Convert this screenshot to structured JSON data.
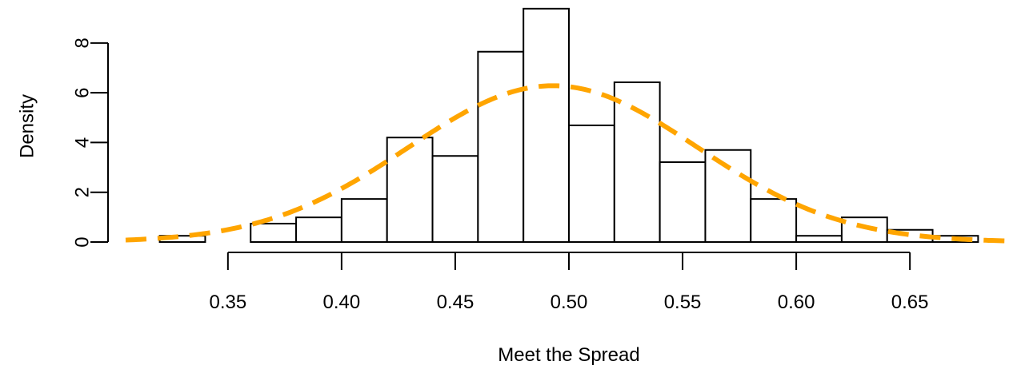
{
  "chart_data": {
    "type": "histogram",
    "xlabel": "Meet the Spread",
    "ylabel": "Density",
    "xlim": [
      0.305,
      0.695
    ],
    "ylim": [
      0,
      9.6
    ],
    "x_ticks": [
      0.35,
      0.4,
      0.45,
      0.5,
      0.55,
      0.6,
      0.65
    ],
    "x_tick_labels": [
      "0.35",
      "0.40",
      "0.45",
      "0.50",
      "0.55",
      "0.60",
      "0.65"
    ],
    "y_ticks": [
      0,
      2,
      4,
      6,
      8
    ],
    "y_tick_labels": [
      "0",
      "2",
      "4",
      "6",
      "8"
    ],
    "bins": [
      {
        "x0": 0.32,
        "x1": 0.34,
        "density": 0.25
      },
      {
        "x0": 0.34,
        "x1": 0.36,
        "density": 0.0
      },
      {
        "x0": 0.36,
        "x1": 0.38,
        "density": 0.74
      },
      {
        "x0": 0.38,
        "x1": 0.4,
        "density": 0.99
      },
      {
        "x0": 0.4,
        "x1": 0.42,
        "density": 1.73
      },
      {
        "x0": 0.42,
        "x1": 0.44,
        "density": 4.2
      },
      {
        "x0": 0.44,
        "x1": 0.46,
        "density": 3.46
      },
      {
        "x0": 0.46,
        "x1": 0.48,
        "density": 7.65
      },
      {
        "x0": 0.48,
        "x1": 0.5,
        "density": 9.38
      },
      {
        "x0": 0.5,
        "x1": 0.52,
        "density": 4.69
      },
      {
        "x0": 0.52,
        "x1": 0.54,
        "density": 6.42
      },
      {
        "x0": 0.54,
        "x1": 0.56,
        "density": 3.21
      },
      {
        "x0": 0.56,
        "x1": 0.58,
        "density": 3.7
      },
      {
        "x0": 0.58,
        "x1": 0.6,
        "density": 1.73
      },
      {
        "x0": 0.6,
        "x1": 0.62,
        "density": 0.25
      },
      {
        "x0": 0.62,
        "x1": 0.64,
        "density": 0.99
      },
      {
        "x0": 0.64,
        "x1": 0.66,
        "density": 0.49
      },
      {
        "x0": 0.66,
        "x1": 0.68,
        "density": 0.25
      }
    ],
    "density_curve": {
      "style": "dashed",
      "mean": 0.493,
      "sd": 0.0635,
      "x_range": [
        0.305,
        0.695
      ]
    },
    "colors": {
      "curve": "#FFA500",
      "bar_fill": "#FFFFFF",
      "bar_stroke": "#000000"
    },
    "grid": false,
    "legend": "none"
  }
}
